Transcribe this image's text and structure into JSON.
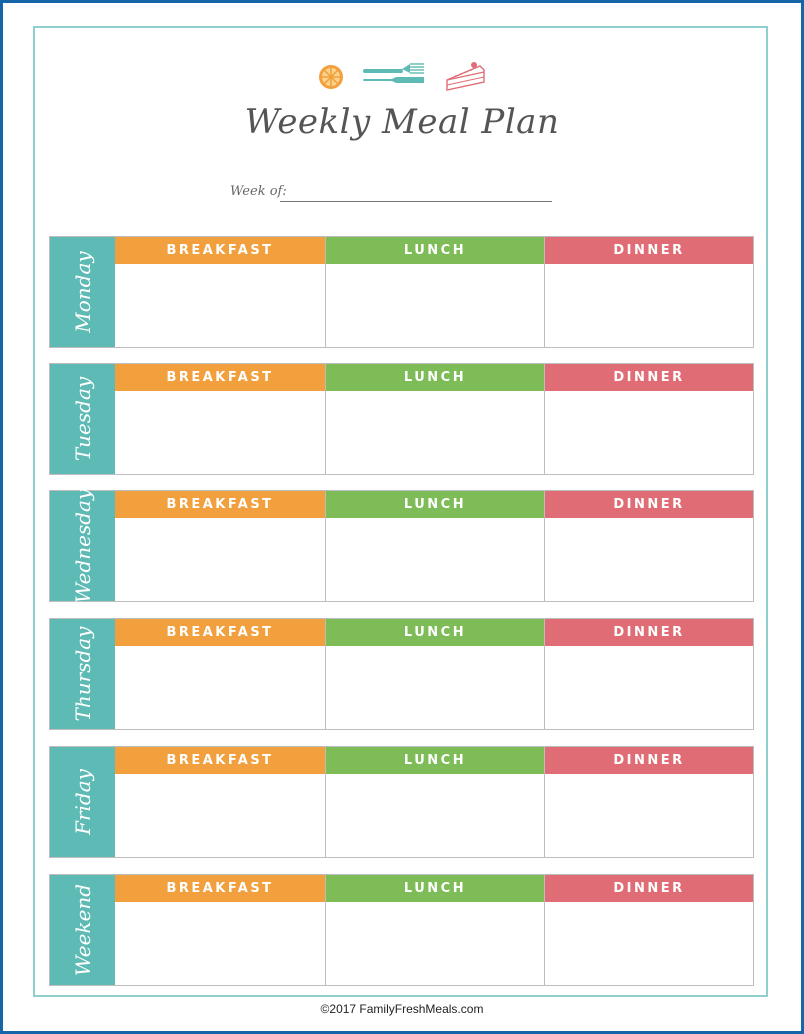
{
  "header": {
    "title": "Weekly Meal Plan",
    "week_label": "Week of:",
    "icons": [
      "orange-slice-icon",
      "cutlery-icon",
      "cake-slice-icon"
    ]
  },
  "meals": {
    "breakfast": "BREAKFAST",
    "lunch": "LUNCH",
    "dinner": "DINNER"
  },
  "days": [
    {
      "name": "Monday"
    },
    {
      "name": "Tuesday"
    },
    {
      "name": "Wednesday"
    },
    {
      "name": "Thursday"
    },
    {
      "name": "Friday"
    },
    {
      "name": "Weekend"
    }
  ],
  "footer": {
    "copyright": "©2017 FamilyFreshMeals.com"
  },
  "colors": {
    "outer_border": "#1565a8",
    "inner_border": "#8fd0cf",
    "day_tab": "#5dbab4",
    "breakfast": "#f2a03d",
    "lunch": "#7dbc56",
    "dinner": "#e06d76"
  }
}
